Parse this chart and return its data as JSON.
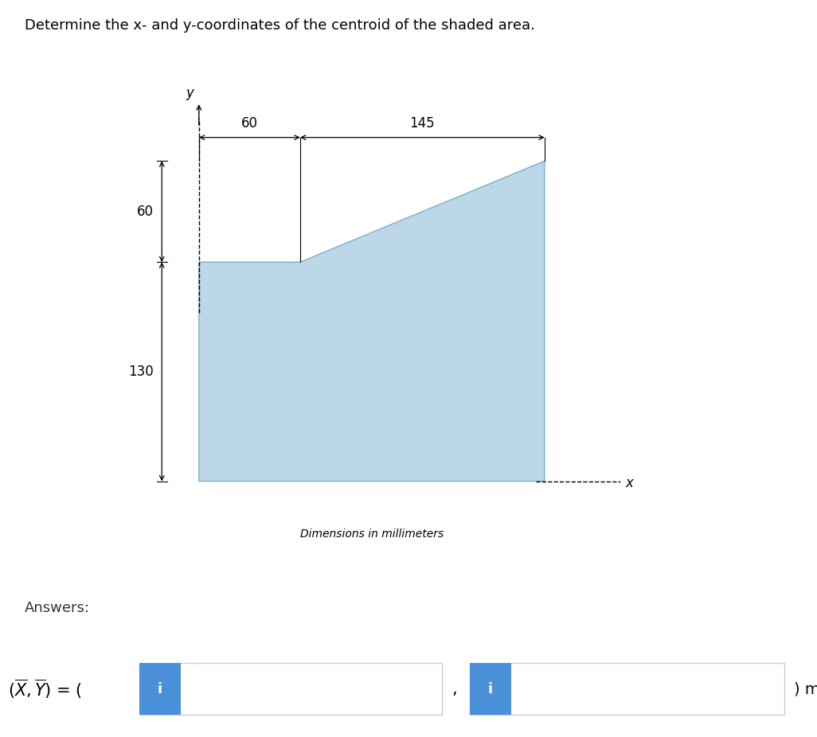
{
  "title": "Determine the x- and y-coordinates of the centroid of the shaded area.",
  "title_fontsize": 13,
  "shaded_color": "#bcd8e8",
  "shaded_edge_color": "#7aafc5",
  "shape_vertices_x": [
    0,
    0,
    60,
    205,
    205,
    0
  ],
  "shape_vertices_y": [
    0,
    130,
    130,
    190,
    0,
    0
  ],
  "dim_label_fontsize": 12,
  "axis_label_fontsize": 12,
  "caption": "Dimensions in millimeters",
  "caption_fontsize": 10,
  "answers_label": "Answers:",
  "answers_fontsize": 13,
  "box_color": "#4a90d9",
  "box_text": "i",
  "box_text_color": "#ffffff"
}
